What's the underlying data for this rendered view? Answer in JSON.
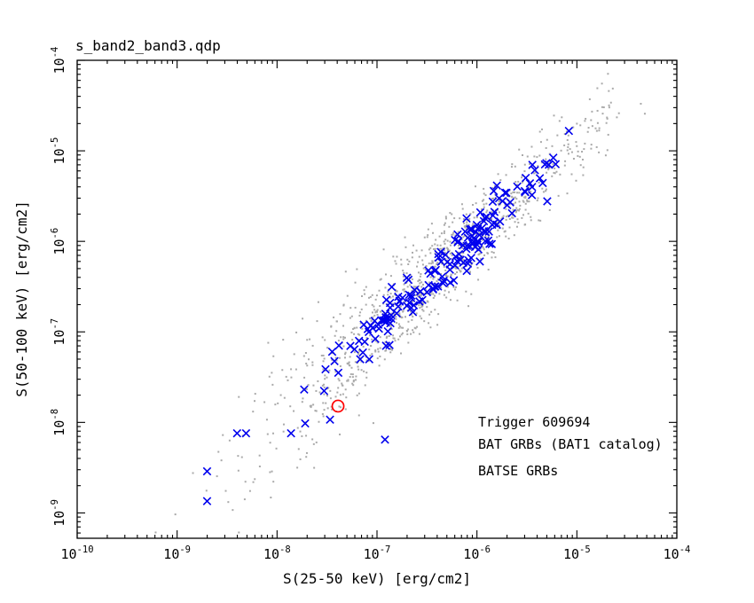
{
  "window": {
    "title": "s_band2_band3.qdp"
  },
  "chart_data": {
    "type": "scatter",
    "title": "s_band2_band3.qdp",
    "xlabel": "S(25-50 keV) [erg/cm2]",
    "ylabel": "S(50-100 keV) [erg/cm2]",
    "x_scale": "log10",
    "y_scale": "log10",
    "xlim_log10": [
      -10,
      -4
    ],
    "ylim_log10": [
      -9.28,
      -4
    ],
    "x_major_tick_exponents": [
      -10,
      -9,
      -8,
      -7,
      -6,
      -5,
      -4
    ],
    "y_major_tick_exponents": [
      -9,
      -8,
      -7,
      -6,
      -5,
      -4
    ],
    "grid": false,
    "legend_position": "lower-right",
    "legend": [
      {
        "label": "Trigger 609694",
        "color": "#ff0000",
        "marker": "open-circle"
      },
      {
        "label": "BAT GRBs (BAT1 catalog)",
        "color": "#0000ee",
        "marker": "x"
      },
      {
        "label": "BATSE GRBs",
        "color": "#b4b4b4",
        "marker": "dot"
      }
    ],
    "series": [
      {
        "name": "BATSE GRBs",
        "marker": "dot",
        "color": "#aaaaaa",
        "approx_n": 1100,
        "correlation": {
          "slope": 1.03,
          "intercept_log10": 0.25
        },
        "cloud": {
          "seed": 42,
          "n": 1100,
          "logx_mean": -6.45,
          "logx_sigma": 0.88,
          "logx_min": -9.55,
          "logx_max": -4.55,
          "scatter_base": 0.235,
          "scatter_faint_coef": 0.115,
          "faint_break": -6.4,
          "scatter_max": 0.55
        },
        "outlier_points_log10": [
          [
            -4.36,
            -4.48
          ],
          [
            -4.32,
            -4.59
          ],
          [
            -4.6,
            -4.63
          ],
          [
            -4.8,
            -4.78
          ],
          [
            -4.92,
            -4.92
          ],
          [
            -5.0,
            -4.7
          ]
        ]
      },
      {
        "name": "BAT GRBs (BAT1 catalog)",
        "marker": "x",
        "color": "#0000ee",
        "approx_n": 178,
        "correlation": {
          "slope": 1.03,
          "intercept_log10": 0.25
        },
        "cloud": {
          "seed": 1337,
          "n": 170,
          "logx_mean": -6.32,
          "logx_sigma": 0.6,
          "logx_min": -8.2,
          "logx_max": -5.05,
          "scatter_base": 0.135,
          "scatter_faint_coef": 0,
          "faint_break": -6.4,
          "scatter_max": 0.135
        },
        "outlier_points_log10": [
          [
            -8.7,
            -8.54
          ],
          [
            -8.7,
            -8.87
          ],
          [
            -8.4,
            -8.12
          ],
          [
            -8.31,
            -8.12
          ],
          [
            -7.86,
            -8.12
          ],
          [
            -7.47,
            -7.97
          ],
          [
            -6.92,
            -8.19
          ],
          [
            -5.08,
            -4.78
          ]
        ]
      },
      {
        "name": "Trigger 609694",
        "marker": "open-circle",
        "color": "#ff0000",
        "points_log10": [
          [
            -7.39,
            -7.82
          ]
        ]
      }
    ]
  }
}
